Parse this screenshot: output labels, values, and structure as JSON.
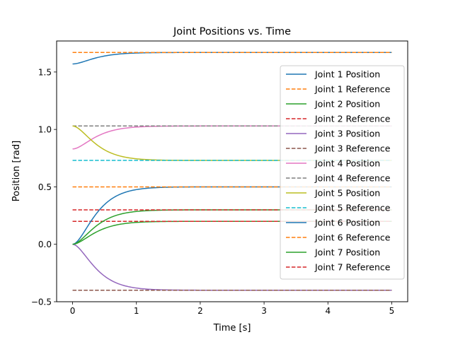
{
  "chart_data": {
    "type": "line",
    "title": "Joint Positions vs. Time",
    "xlabel": "Time [s]",
    "ylabel": "Position [rad]",
    "xlim": [
      -0.25,
      5.25
    ],
    "ylim": [
      -0.5,
      1.77
    ],
    "xticks": [
      0,
      1,
      2,
      3,
      4,
      5
    ],
    "yticks": [
      -0.5,
      0.0,
      0.5,
      1.0,
      1.5
    ],
    "xtick_labels": [
      "0",
      "1",
      "2",
      "3",
      "4",
      "5"
    ],
    "ytick_labels": [
      "−0.5",
      "0.0",
      "0.5",
      "1.0",
      "1.5"
    ],
    "grid": false,
    "legend_position": "right",
    "time_range": [
      0,
      5
    ],
    "series": [
      {
        "name": "Joint 1 Position",
        "kind": "position",
        "color": "#1f77b4",
        "start": 1.57,
        "target": 1.67,
        "rate": 4.8
      },
      {
        "name": "Joint 1 Reference",
        "kind": "reference",
        "color": "#ff7f0e",
        "value": 1.67
      },
      {
        "name": "Joint 2 Position",
        "kind": "position",
        "color": "#2ca02c",
        "start": 0.0,
        "target": 0.2,
        "rate": 4.8
      },
      {
        "name": "Joint 2 Reference",
        "kind": "reference",
        "color": "#d62728",
        "value": 0.2
      },
      {
        "name": "Joint 3 Position",
        "kind": "position",
        "color": "#9467bd",
        "start": 0.0,
        "target": -0.4,
        "rate": 4.8
      },
      {
        "name": "Joint 3 Reference",
        "kind": "reference",
        "color": "#8c564b",
        "value": -0.4
      },
      {
        "name": "Joint 4 Position",
        "kind": "position",
        "color": "#e377c2",
        "start": 0.83,
        "target": 1.03,
        "rate": 4.8
      },
      {
        "name": "Joint 4 Reference",
        "kind": "reference",
        "color": "#7f7f7f",
        "value": 1.03
      },
      {
        "name": "Joint 5 Position",
        "kind": "position",
        "color": "#bcbd22",
        "start": 1.03,
        "target": 0.73,
        "rate": 4.8
      },
      {
        "name": "Joint 5 Reference",
        "kind": "reference",
        "color": "#17becf",
        "value": 0.73
      },
      {
        "name": "Joint 6 Position",
        "kind": "position",
        "color": "#1f77b4",
        "start": 0.0,
        "target": 0.5,
        "rate": 4.8
      },
      {
        "name": "Joint 6 Reference",
        "kind": "reference",
        "color": "#ff7f0e",
        "value": 0.5
      },
      {
        "name": "Joint 7 Position",
        "kind": "position",
        "color": "#2ca02c",
        "start": 0.0,
        "target": 0.3,
        "rate": 4.8
      },
      {
        "name": "Joint 7 Reference",
        "kind": "reference",
        "color": "#d62728",
        "value": 0.3
      }
    ]
  }
}
